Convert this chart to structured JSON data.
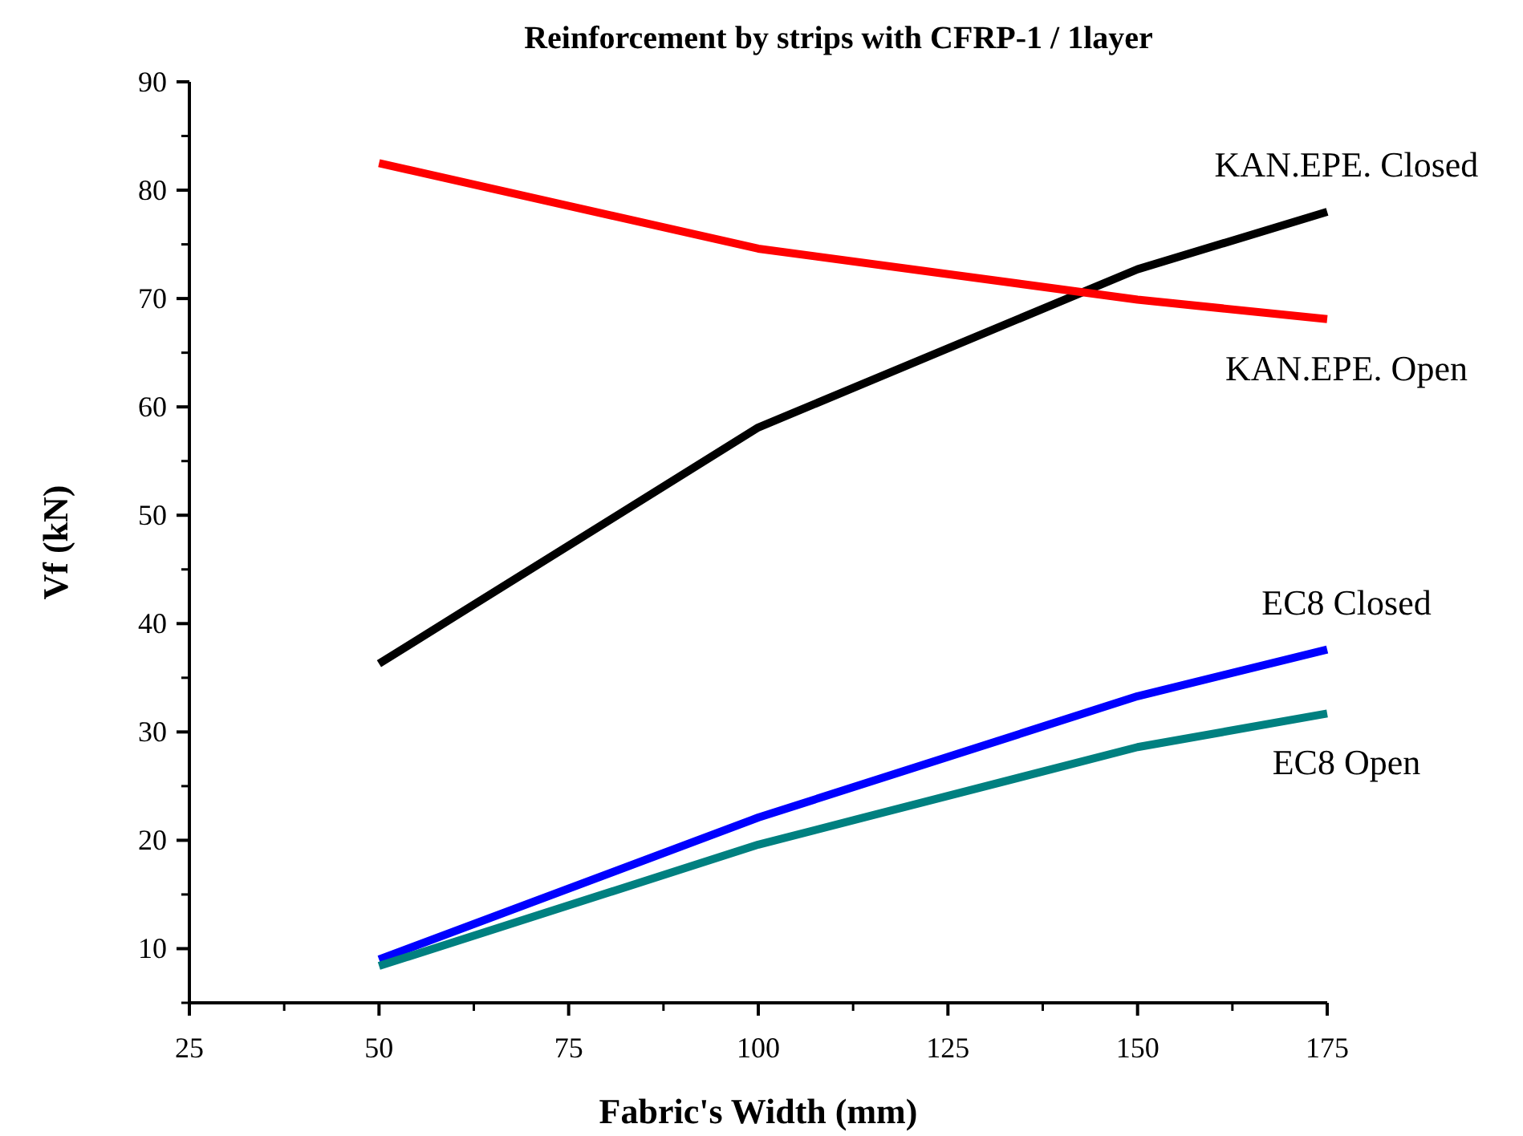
{
  "chart_data": {
    "type": "line",
    "title": "Reinforcement by strips with CFRP-1 / 1layer",
    "xlabel": "Fabric's Width (mm)",
    "ylabel": "Vf (kN)",
    "x": [
      50,
      100,
      150,
      175
    ],
    "series": [
      {
        "name": "KAN.EPE. Closed",
        "color": "#000000",
        "values": [
          36.3,
          58.1,
          72.7,
          78.0
        ]
      },
      {
        "name": "KAN.EPE. Open",
        "color": "#ff0000",
        "values": [
          82.5,
          74.6,
          69.9,
          68.1
        ]
      },
      {
        "name": "EC8 Closed",
        "color": "#0000ff",
        "values": [
          9.0,
          22.1,
          33.3,
          37.6
        ]
      },
      {
        "name": "EC8 Open",
        "color": "#008080",
        "values": [
          8.4,
          19.6,
          28.6,
          31.7
        ]
      }
    ],
    "xlim": [
      25,
      175
    ],
    "xticks": [
      25,
      50,
      75,
      100,
      125,
      150,
      175
    ],
    "ylim": [
      5,
      90
    ],
    "yticks": [
      10,
      20,
      30,
      40,
      50,
      60,
      70,
      80,
      90
    ],
    "grid": false,
    "marker": "none",
    "line_style": "solid"
  }
}
